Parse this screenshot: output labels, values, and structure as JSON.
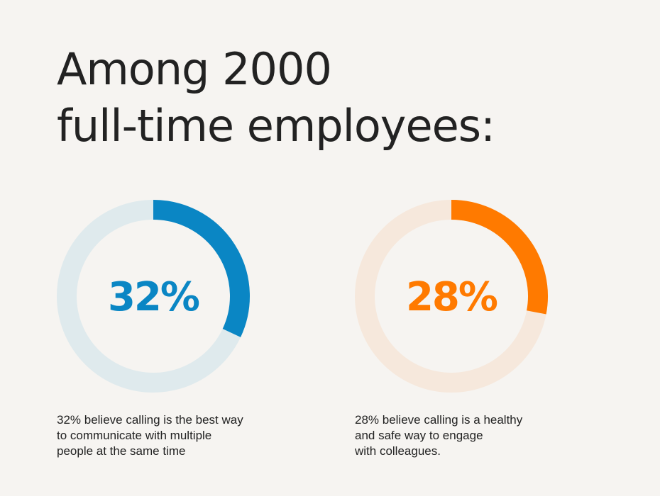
{
  "title_lines": [
    "Among 2000",
    "full-time employees:"
  ],
  "chart_data": [
    {
      "type": "pie",
      "variant": "donut",
      "values": [
        32,
        68
      ],
      "center_label": "32%",
      "colors": {
        "value": "#0a86c4",
        "remainder": "#dfeaed"
      },
      "caption_lines": [
        "32% believe calling is the best way",
        "to communicate with multiple",
        "people at the same time"
      ]
    },
    {
      "type": "pie",
      "variant": "donut",
      "values": [
        28,
        72
      ],
      "center_label": "28%",
      "colors": {
        "value": "#ff7a00",
        "remainder": "#f6e8dc"
      },
      "caption_lines": [
        "28% believe calling is a healthy",
        "and safe way to engage",
        "with colleagues."
      ]
    }
  ]
}
